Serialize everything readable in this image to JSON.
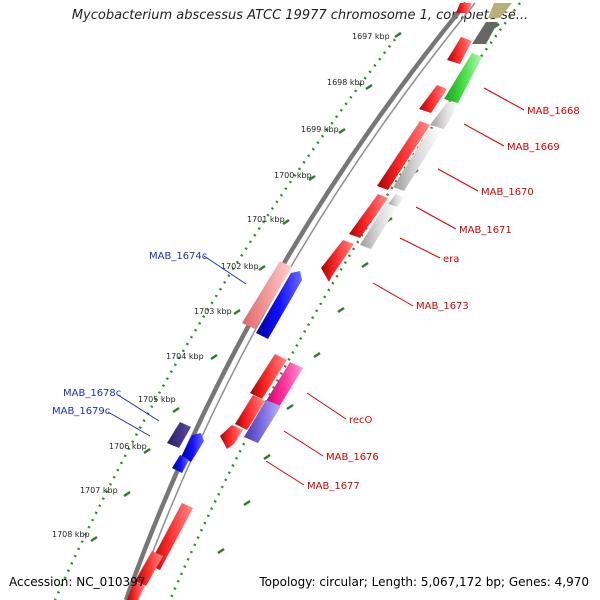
{
  "header": {
    "title": "Mycobacterium abscessus ATCC 19977 chromosome 1, complete se..."
  },
  "footer": {
    "accession": "Accession: NC_010397",
    "summary": "Topology: circular; Length: 5,067,172 bp; Genes: 4,970"
  },
  "ruler": {
    "ticks": [
      "1697 kbp",
      "1698 kbp",
      "1699 kbp",
      "1700 kbp",
      "1701 kbp",
      "1702 kbp",
      "1703 kbp",
      "1704 kbp",
      "1705 kbp",
      "1706 kbp",
      "1707 kbp",
      "1708 kbp"
    ]
  },
  "colors": {
    "backbone": "#888888",
    "dotted_track": "#2e8b2e",
    "red": "#ff0000",
    "pink": "#f08080",
    "magenta": "#ff1493",
    "gray": "#c8c8c8",
    "green": "#33cc33",
    "blue": "#0000ff",
    "purple": "#3d2b8a",
    "lavender": "#6a5acd",
    "blue_label": "#1f2fbf",
    "red_label": "#d40000"
  },
  "labels": {
    "left": [
      {
        "text": "MAB_1674c",
        "color": "blue"
      },
      {
        "text": "MAB_1678c",
        "color": "blue"
      },
      {
        "text": "MAB_1679c",
        "color": "blue"
      }
    ],
    "right": [
      {
        "text": "MAB_1668",
        "color": "red"
      },
      {
        "text": "MAB_1669",
        "color": "red"
      },
      {
        "text": "MAB_1670",
        "color": "red"
      },
      {
        "text": "MAB_1671",
        "color": "red"
      },
      {
        "text": "era",
        "color": "red"
      },
      {
        "text": "MAB_1673",
        "color": "red"
      },
      {
        "text": "recO",
        "color": "red"
      },
      {
        "text": "MAB_1676",
        "color": "red"
      },
      {
        "text": "MAB_1677",
        "color": "red"
      }
    ]
  }
}
